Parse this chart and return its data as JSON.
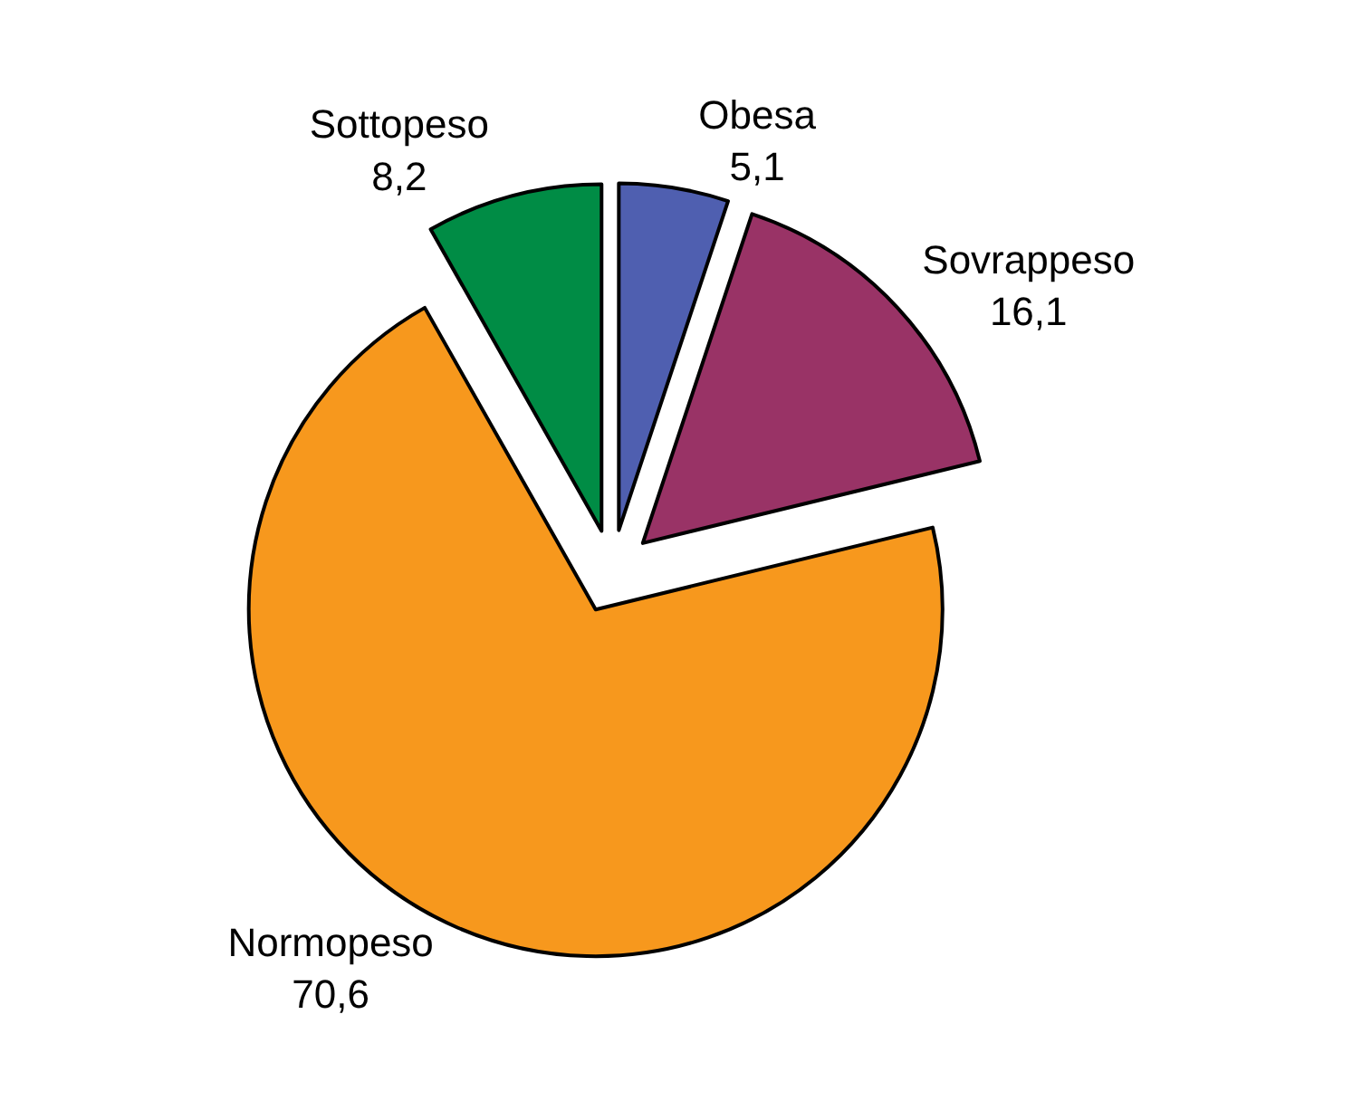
{
  "chart_data": {
    "type": "pie",
    "categories": [
      "Obesa",
      "Sovrappeso",
      "Normopeso",
      "Sottopeso"
    ],
    "values": [
      5.1,
      16.1,
      70.6,
      8.2
    ],
    "value_labels": [
      "5,1",
      "16,1",
      "70,6",
      "8,2"
    ],
    "colors": [
      "#4f5fb0",
      "#993366",
      "#f7981d",
      "#008c45"
    ],
    "legend": false
  }
}
